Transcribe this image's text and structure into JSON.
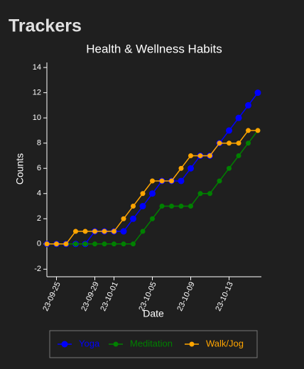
{
  "header": {
    "title": "Trackers"
  },
  "chart_data": {
    "type": "line",
    "title": "Health & Wellness Habits",
    "x_label": "Date",
    "y_label": "Counts",
    "categories": [
      null,
      "23-09-25",
      null,
      null,
      null,
      "23-09-29",
      null,
      "23-10-01",
      null,
      null,
      null,
      "23-10-05",
      null,
      null,
      null,
      "23-10-09",
      null,
      null,
      null,
      "23-10-13",
      null,
      null,
      null
    ],
    "series": [
      {
        "name": "Yoga",
        "color": "#0000ff",
        "values": [
          0,
          0,
          0,
          0,
          0,
          1,
          1,
          1,
          1,
          2,
          3,
          4,
          5,
          5,
          5,
          6,
          7,
          7,
          8,
          9,
          10,
          11,
          12
        ]
      },
      {
        "name": "Meditation",
        "color": "#008000",
        "values": [
          0,
          0,
          0,
          0,
          0,
          0,
          0,
          0,
          0,
          0,
          1,
          2,
          3,
          3,
          3,
          3,
          4,
          4,
          5,
          6,
          7,
          8,
          9
        ]
      },
      {
        "name": "Walk/Jog",
        "color": "#ffa500",
        "values": [
          0,
          0,
          0,
          1,
          1,
          1,
          1,
          1,
          2,
          3,
          4,
          5,
          5,
          5,
          6,
          7,
          7,
          7,
          8,
          8,
          8,
          9,
          9
        ]
      }
    ],
    "ylim": [
      -2.6,
      14.4
    ],
    "yticks": [
      -2,
      0,
      2,
      4,
      6,
      8,
      10,
      12,
      14
    ],
    "legend": "bottom"
  }
}
